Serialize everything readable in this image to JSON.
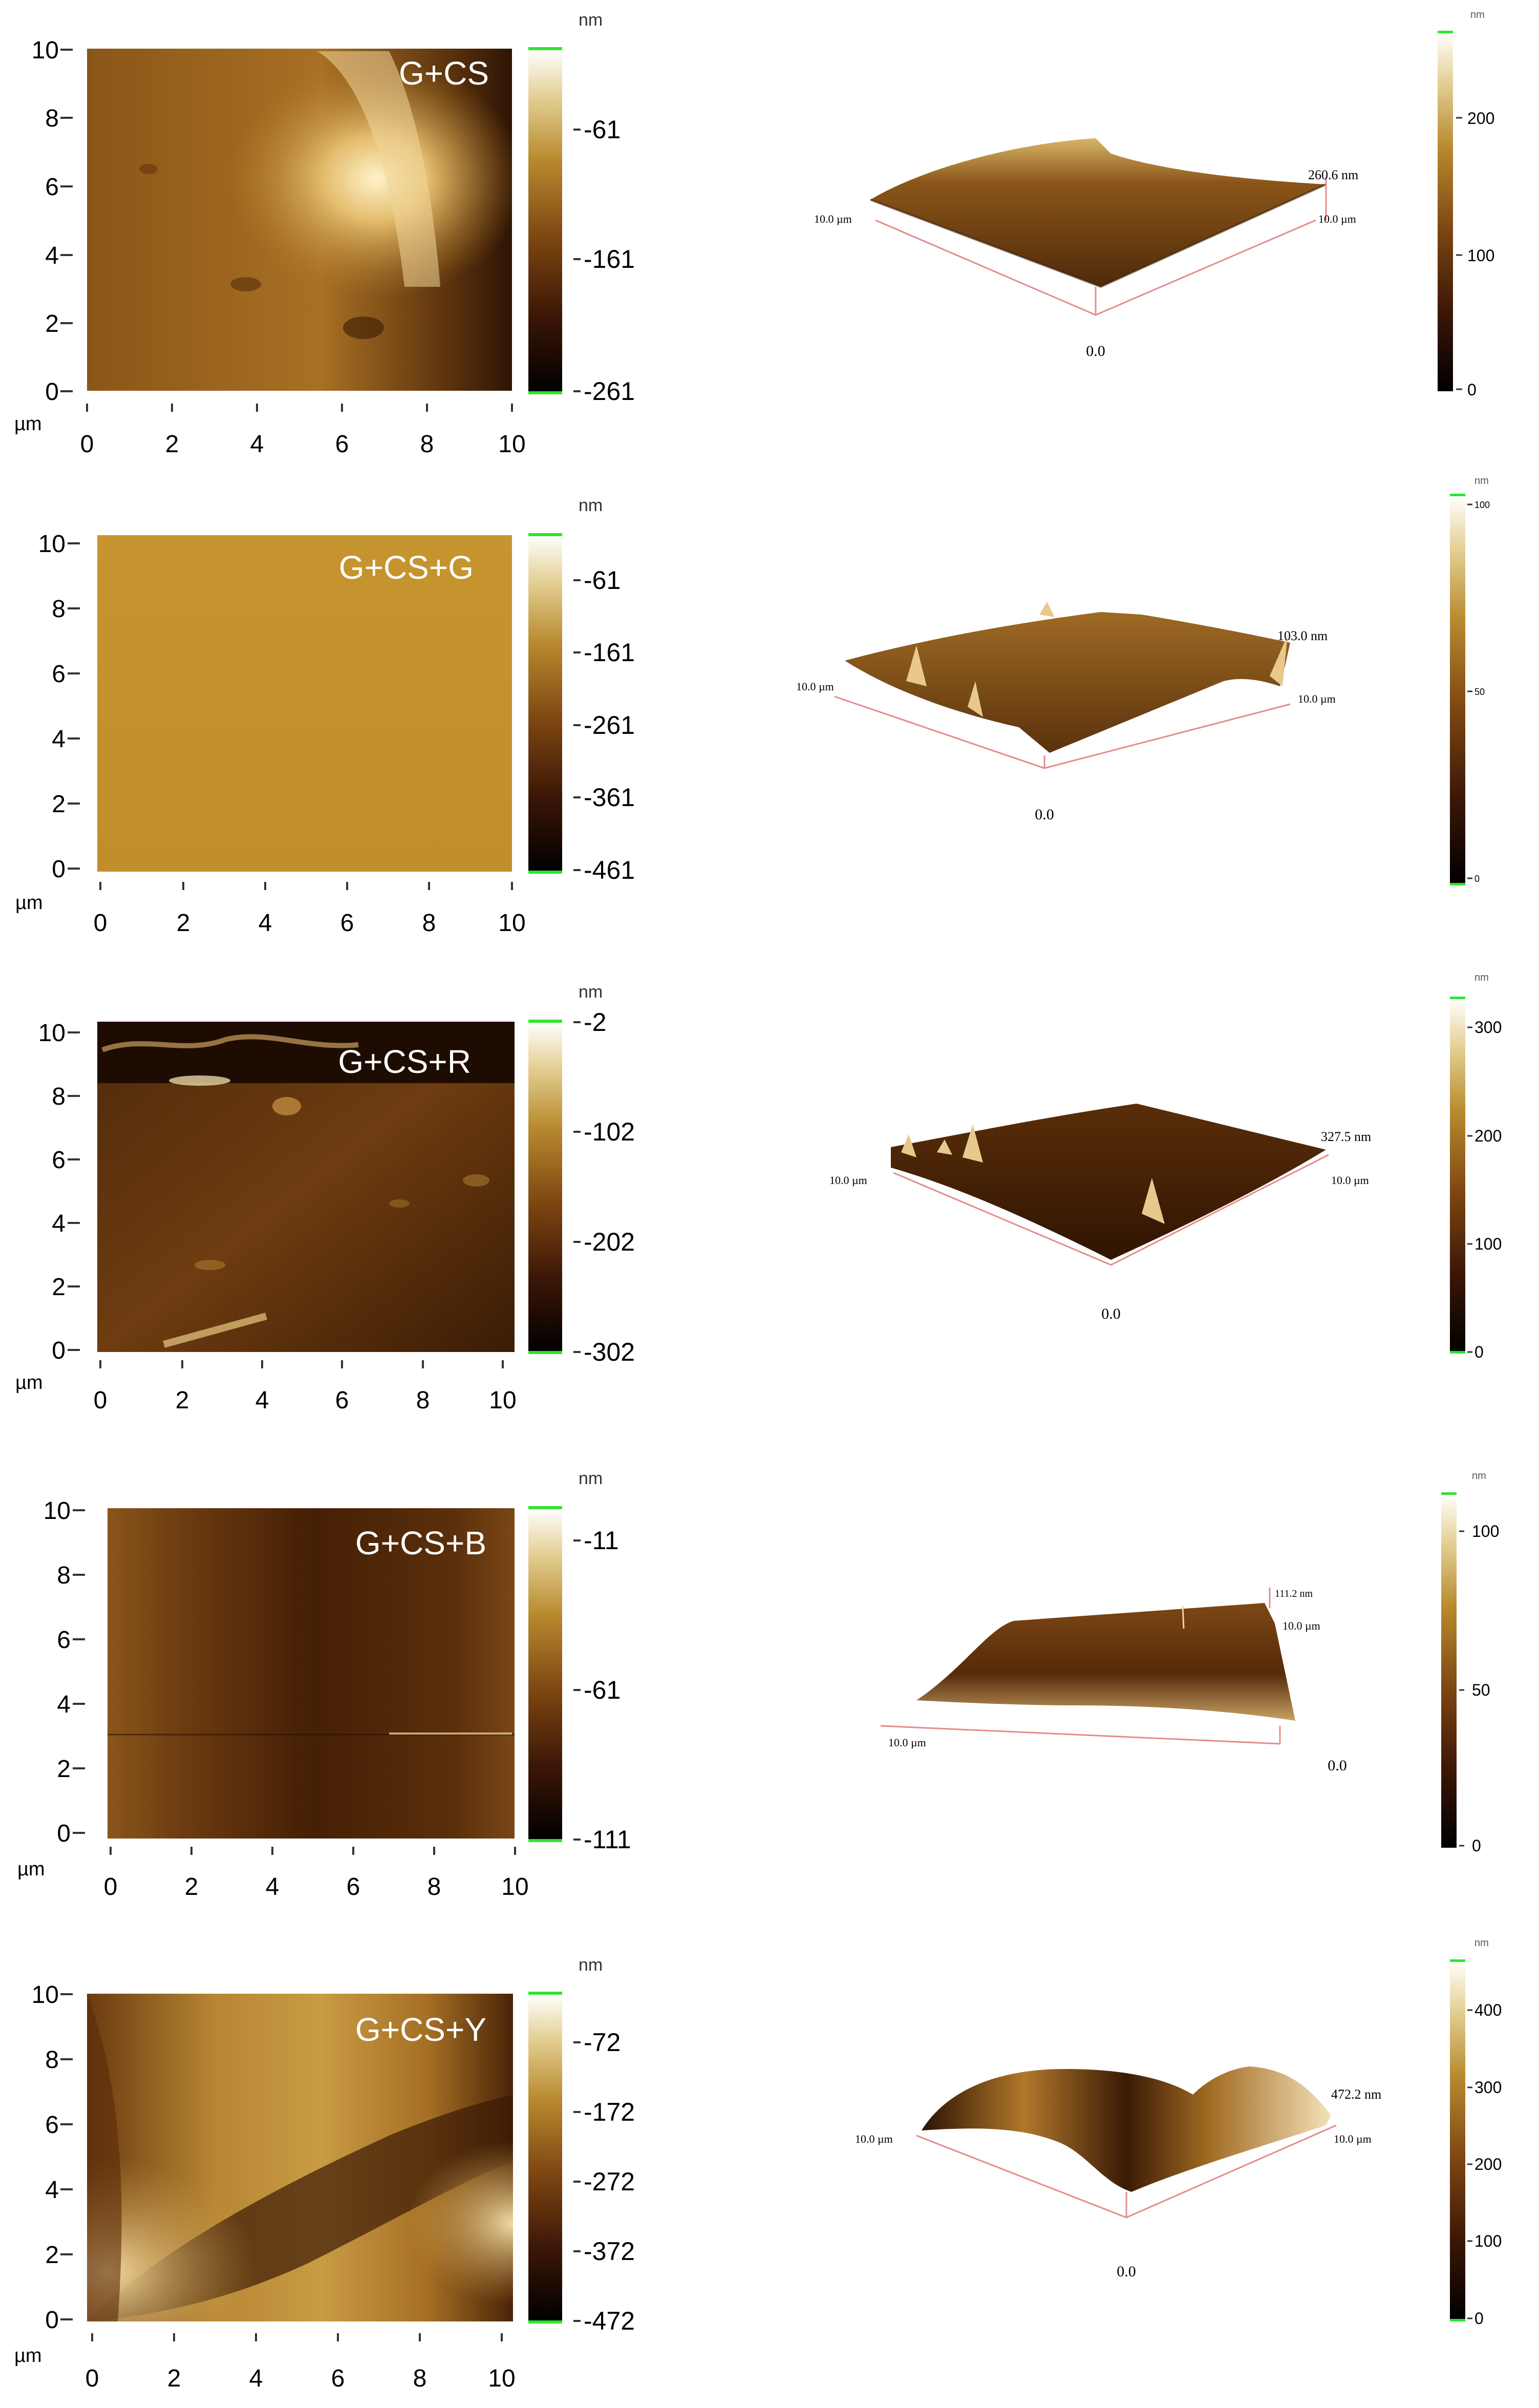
{
  "axis_unit": "µm",
  "colorbar_unit": "nm",
  "panels": [
    {
      "sample": "G+CS",
      "x_ticks": [
        "0",
        "2",
        "4",
        "6",
        "8",
        "10"
      ],
      "y_ticks": [
        "0",
        "2",
        "4",
        "6",
        "8",
        "10"
      ],
      "bar2d_ticks": [
        "-61",
        "-161",
        "-261"
      ],
      "bar3d_ticks": [
        "200",
        "100",
        "0"
      ],
      "label_3d_height": "260.6 nm",
      "label_3d_left": "10.0 µm",
      "label_3d_right": "10.0 µm",
      "label_3d_origin": "0.0"
    },
    {
      "sample": "G+CS+G",
      "x_ticks": [
        "0",
        "2",
        "4",
        "6",
        "8",
        "10"
      ],
      "y_ticks": [
        "0",
        "2",
        "4",
        "6",
        "8",
        "10"
      ],
      "bar2d_ticks": [
        "-61",
        "-161",
        "-261",
        "-361",
        "-461"
      ],
      "bar3d_ticks": [
        "100",
        "50",
        "0"
      ],
      "label_3d_height": "103.0 nm",
      "label_3d_left": "10.0 µm",
      "label_3d_right": "10.0 µm",
      "label_3d_origin": "0.0"
    },
    {
      "sample": "G+CS+R",
      "x_ticks": [
        "0",
        "2",
        "4",
        "6",
        "8",
        "10"
      ],
      "y_ticks": [
        "0",
        "2",
        "4",
        "6",
        "8",
        "10"
      ],
      "bar2d_ticks": [
        "-2",
        "-102",
        "-202",
        "-302"
      ],
      "bar3d_ticks": [
        "300",
        "200",
        "100",
        "0"
      ],
      "label_3d_height": "327.5 nm",
      "label_3d_left": "10.0 µm",
      "label_3d_right": "10.0 µm",
      "label_3d_origin": "0.0"
    },
    {
      "sample": "G+CS+B",
      "x_ticks": [
        "0",
        "2",
        "4",
        "6",
        "8",
        "10"
      ],
      "y_ticks": [
        "0",
        "2",
        "4",
        "6",
        "8",
        "10"
      ],
      "bar2d_ticks": [
        "-11",
        "-61",
        "-111"
      ],
      "bar3d_ticks": [
        "100",
        "50",
        "0"
      ],
      "label_3d_height": "111.2 nm",
      "label_3d_left": "10.0 µm",
      "label_3d_right": "10.0 µm",
      "label_3d_origin": "0.0"
    },
    {
      "sample": "G+CS+Y",
      "x_ticks": [
        "0",
        "2",
        "4",
        "6",
        "8",
        "10"
      ],
      "y_ticks": [
        "0",
        "2",
        "4",
        "6",
        "8",
        "10"
      ],
      "bar2d_ticks": [
        "-72",
        "-172",
        "-272",
        "-372",
        "-472"
      ],
      "bar3d_ticks": [
        "400",
        "300",
        "200",
        "100",
        "0"
      ],
      "label_3d_height": "472.2 nm",
      "label_3d_left": "10.0 µm",
      "label_3d_right": "10.0 µm",
      "label_3d_origin": "0.0"
    }
  ]
}
